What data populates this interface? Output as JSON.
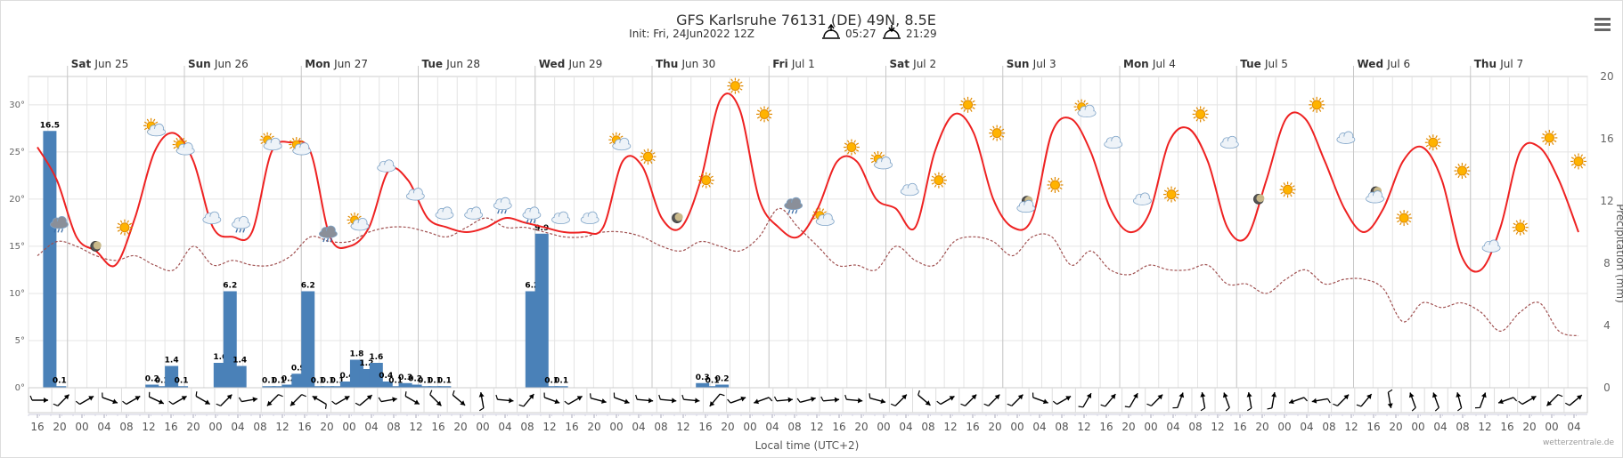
{
  "header": {
    "title": "GFS Karlsruhe 76131 (DE) 49N, 8.5E",
    "init": "Init: Fri, 24Jun2022 12Z",
    "sunrise": "05:27",
    "sunset": "21:29"
  },
  "menu_icon": "hamburger-menu-icon",
  "colors": {
    "temp": "#ee2222",
    "dew": "#a05050",
    "bar": "#4a81b8",
    "grid": "#e4e4e4"
  },
  "chart_data": {
    "type": "bar",
    "title": "GFS Karlsruhe 76131 (DE) 49N, 8.5E",
    "xlabel": "Local time (UTC+2)",
    "ylabel_left": "",
    "ylabel_right": "Precipitation (mm)",
    "temp_axis": {
      "min": 0,
      "max": 33,
      "ticks": [
        "0°",
        "5°",
        "10°",
        "15°",
        "20°",
        "25°",
        "30°"
      ],
      "tick_values": [
        0,
        5,
        10,
        15,
        20,
        25,
        30
      ]
    },
    "precip_axis": {
      "min": 0,
      "max": 20,
      "ticks": [
        "0",
        "4",
        "8",
        "12",
        "16",
        "20"
      ],
      "tick_values": [
        0,
        4,
        8,
        12,
        16,
        20
      ]
    },
    "start_hour_offset": 0,
    "step_hours": 4,
    "hour_labels": [
      "16",
      "20",
      "00",
      "04",
      "08",
      "12",
      "16",
      "20",
      "00",
      "04",
      "08",
      "12",
      "16",
      "20",
      "00",
      "04",
      "08",
      "12",
      "16",
      "20",
      "00",
      "04",
      "08",
      "12",
      "16",
      "20",
      "00",
      "04",
      "08",
      "12",
      "16",
      "20",
      "00",
      "04",
      "08",
      "12",
      "16",
      "20",
      "00",
      "04",
      "08",
      "12",
      "16",
      "20",
      "00",
      "04",
      "08",
      "12",
      "16",
      "20",
      "00",
      "04",
      "08",
      "12",
      "16",
      "20",
      "00",
      "04",
      "08",
      "12",
      "16",
      "20",
      "00",
      "04",
      "08",
      "12",
      "16",
      "20",
      "00",
      "04",
      "08",
      "12",
      "16",
      "20",
      "00",
      "04",
      "08",
      "12",
      "16",
      "20"
    ],
    "days": [
      {
        "dow": "Sat",
        "date": "Jun 25",
        "start_index": 2
      },
      {
        "dow": "Sun",
        "date": "Jun 26",
        "start_index": 8
      },
      {
        "dow": "Mon",
        "date": "Jun 27",
        "start_index": 14
      },
      {
        "dow": "Tue",
        "date": "Jun 28",
        "start_index": 20
      },
      {
        "dow": "Wed",
        "date": "Jun 29",
        "start_index": 26
      },
      {
        "dow": "Thu",
        "date": "Jun 30",
        "start_index": 32
      },
      {
        "dow": "Fri",
        "date": "Jul 1",
        "start_index": 38
      },
      {
        "dow": "Sat",
        "date": "Jul 2",
        "start_index": 44
      },
      {
        "dow": "Sun",
        "date": "Jul 3",
        "start_index": 50
      },
      {
        "dow": "Mon",
        "date": "Jul 4",
        "start_index": 56
      },
      {
        "dow": "Tue",
        "date": "Jul 5",
        "start_index": 62
      },
      {
        "dow": "Wed",
        "date": "Jul 6",
        "start_index": 68
      },
      {
        "dow": "Thu",
        "date": "Jul 7",
        "start_index": 74
      }
    ],
    "temperature": [
      25.5,
      22,
      16,
      14.5,
      13,
      18,
      25,
      27,
      24,
      17,
      16,
      16.5,
      25,
      26,
      25,
      16,
      15,
      17,
      23,
      22,
      18,
      17,
      16.5,
      17,
      18,
      17.5,
      17,
      16.5,
      16.5,
      17,
      24,
      23.5,
      18,
      17,
      22,
      30.5,
      29.5,
      20,
      17,
      16,
      19,
      24,
      24,
      20,
      19,
      17,
      25,
      29,
      27,
      20,
      17,
      18,
      27,
      28.5,
      25,
      19,
      16.5,
      18.5,
      26,
      27.5,
      24,
      17,
      16,
      22,
      28.5,
      28.5,
      24,
      19,
      16.5,
      19,
      24,
      25.5,
      22,
      14,
      12.5,
      17,
      25,
      25.5,
      22,
      16.5
    ],
    "dewpoint": [
      14,
      15.5,
      15,
      14,
      13.5,
      14,
      13,
      12.5,
      15,
      13,
      13.5,
      13,
      13,
      14,
      16,
      15.5,
      15.5,
      16.5,
      17,
      17,
      16.5,
      16,
      17,
      18,
      17,
      17,
      16.5,
      16,
      16,
      16.5,
      16.5,
      16,
      15,
      14.5,
      15.5,
      15,
      14.5,
      16,
      19,
      17,
      15,
      13,
      13,
      12.5,
      15,
      13.5,
      13,
      15.5,
      16,
      15.5,
      14,
      16,
      16,
      13,
      14.5,
      12.5,
      12,
      13,
      12.5,
      12.5,
      13,
      11,
      11,
      10,
      11.5,
      12.5,
      11,
      11.5,
      11.5,
      10.5,
      7,
      9,
      8.5,
      9,
      8,
      6,
      8,
      9,
      6,
      5.5
    ],
    "precip_bars": [
      {
        "index": 1.5,
        "value": 16.5,
        "label": "16.5"
      },
      {
        "index": 2.5,
        "value": 0.1,
        "label": "0.1"
      },
      {
        "index": 12,
        "value": 0.2,
        "label": "0.2"
      },
      {
        "index": 13,
        "value": 0.1,
        "label": "0.1"
      },
      {
        "index": 14,
        "value": 1.4,
        "label": "1.4"
      },
      {
        "index": 15,
        "value": 0.1,
        "label": "0.1"
      },
      {
        "index": 19,
        "value": 1.6,
        "label": "1.6"
      },
      {
        "index": 20,
        "value": 6.2,
        "label": "6.2"
      },
      {
        "index": 21,
        "value": 1.4,
        "label": "1.4"
      },
      {
        "index": 24,
        "value": 0.1,
        "label": "0.1"
      },
      {
        "index": 25,
        "value": 0.1,
        "label": "0.1"
      },
      {
        "index": 26,
        "value": 0.2,
        "label": "0.2"
      },
      {
        "index": 27,
        "value": 0.9,
        "label": "0.9"
      },
      {
        "index": 28,
        "value": 6.2,
        "label": "6.2"
      },
      {
        "index": 29,
        "value": 0.1,
        "label": "0.1"
      },
      {
        "index": 30,
        "value": 0.1,
        "label": "0.1"
      },
      {
        "index": 31,
        "value": 0.1,
        "label": "0.1"
      },
      {
        "index": 32,
        "value": 0.4,
        "label": "0.4"
      },
      {
        "index": 33,
        "value": 1.8,
        "label": "1.8"
      },
      {
        "index": 34,
        "value": 1.2,
        "label": "1.2"
      },
      {
        "index": 35,
        "value": 1.6,
        "label": "1.6"
      },
      {
        "index": 36,
        "value": 0.4,
        "label": "0.4"
      },
      {
        "index": 37,
        "value": 0.1,
        "label": "0.1"
      },
      {
        "index": 38,
        "value": 0.3,
        "label": "0.3"
      },
      {
        "index": 39,
        "value": 0.2,
        "label": "0.2"
      },
      {
        "index": 40,
        "value": 0.1,
        "label": "0.1"
      },
      {
        "index": 41,
        "value": 0.1,
        "label": "0.1"
      },
      {
        "index": 42,
        "value": 0.1,
        "label": "0.1"
      },
      {
        "index": 51,
        "value": 6.2,
        "label": "6.2"
      },
      {
        "index": 52,
        "value": 9.9,
        "label": "9.9"
      },
      {
        "index": 53,
        "value": 0.1,
        "label": "0.1"
      },
      {
        "index": 54,
        "value": 0.1,
        "label": "0.1"
      },
      {
        "index": 68.5,
        "value": 0.3,
        "label": "0.3"
      },
      {
        "index": 69.5,
        "value": 0.1,
        "label": "0.1"
      },
      {
        "index": 70.5,
        "value": 0.2,
        "label": "0.2"
      }
    ],
    "weather_icons": [
      {
        "index": 1.5,
        "temp": 17.5,
        "type": "rain"
      },
      {
        "index": 4,
        "temp": 15,
        "type": "moon"
      },
      {
        "index": 6,
        "temp": 17,
        "type": "sun"
      },
      {
        "index": 8,
        "temp": 27.5,
        "type": "sun-cloud"
      },
      {
        "index": 10,
        "temp": 25.5,
        "type": "sun-cloud"
      },
      {
        "index": 12,
        "temp": 18,
        "type": "cloud"
      },
      {
        "index": 14,
        "temp": 17.5,
        "type": "rain-light"
      },
      {
        "index": 16,
        "temp": 26,
        "type": "sun-cloud"
      },
      {
        "index": 18,
        "temp": 25.5,
        "type": "sun-cloud"
      },
      {
        "index": 20,
        "temp": 16.5,
        "type": "rain"
      },
      {
        "index": 22,
        "temp": 17.5,
        "type": "sun-cloud"
      },
      {
        "index": 24,
        "temp": 23.5,
        "type": "cloud"
      },
      {
        "index": 26,
        "temp": 20.5,
        "type": "cloud"
      },
      {
        "index": 28,
        "temp": 18.5,
        "type": "cloud"
      },
      {
        "index": 30,
        "temp": 18.5,
        "type": "cloud"
      },
      {
        "index": 32,
        "temp": 19.5,
        "type": "rain-light"
      },
      {
        "index": 34,
        "temp": 18.5,
        "type": "rain-light"
      },
      {
        "index": 36,
        "temp": 18,
        "type": "cloud"
      },
      {
        "index": 38,
        "temp": 18,
        "type": "cloud"
      },
      {
        "index": 40,
        "temp": 26,
        "type": "sun-cloud"
      },
      {
        "index": 42,
        "temp": 24.5,
        "type": "sun"
      },
      {
        "index": 44,
        "temp": 18,
        "type": "moon"
      },
      {
        "index": 46,
        "temp": 22,
        "type": "sun"
      },
      {
        "index": 48,
        "temp": 32,
        "type": "sun"
      },
      {
        "index": 50,
        "temp": 29,
        "type": "sun"
      },
      {
        "index": 52,
        "temp": 19.5,
        "type": "rain"
      },
      {
        "index": 54,
        "temp": 18,
        "type": "sun-cloud"
      },
      {
        "index": 56,
        "temp": 25.5,
        "type": "sun"
      },
      {
        "index": 58,
        "temp": 24,
        "type": "sun-cloud"
      },
      {
        "index": 60,
        "temp": 21,
        "type": "cloud"
      },
      {
        "index": 62,
        "temp": 22,
        "type": "sun"
      },
      {
        "index": 64,
        "temp": 30,
        "type": "sun"
      },
      {
        "index": 66,
        "temp": 27,
        "type": "sun"
      },
      {
        "index": 68,
        "temp": 19.5,
        "type": "moon-cloud"
      },
      {
        "index": 70,
        "temp": 21.5,
        "type": "sun"
      },
      {
        "index": 72,
        "temp": 29.5,
        "type": "sun-cloud"
      },
      {
        "index": 74,
        "temp": 26,
        "type": "cloud"
      },
      {
        "index": 76,
        "temp": 20,
        "type": "cloud"
      },
      {
        "index": 78,
        "temp": 20.5,
        "type": "sun"
      },
      {
        "index": 80,
        "temp": 29,
        "type": "sun"
      },
      {
        "index": 82,
        "temp": 26,
        "type": "cloud"
      },
      {
        "index": 84,
        "temp": 20,
        "type": "moon"
      },
      {
        "index": 86,
        "temp": 21,
        "type": "sun"
      },
      {
        "index": 88,
        "temp": 30,
        "type": "sun"
      },
      {
        "index": 90,
        "temp": 26.5,
        "type": "cloud"
      },
      {
        "index": 92,
        "temp": 20.5,
        "type": "moon-cloud"
      },
      {
        "index": 94,
        "temp": 18,
        "type": "sun"
      },
      {
        "index": 96,
        "temp": 26,
        "type": "sun"
      },
      {
        "index": 98,
        "temp": 23,
        "type": "sun"
      },
      {
        "index": 100,
        "temp": 15,
        "type": "cloud"
      },
      {
        "index": 102,
        "temp": 17,
        "type": "sun"
      },
      {
        "index": 104,
        "temp": 26.5,
        "type": "sun"
      },
      {
        "index": 106,
        "temp": 24,
        "type": "sun"
      }
    ],
    "wind_directions_deg": [
      90,
      45,
      60,
      110,
      60,
      115,
      60,
      120,
      45,
      80,
      225,
      225,
      300,
      60,
      50,
      80,
      120,
      135,
      130,
      350,
      95,
      40,
      110,
      60,
      105,
      110,
      95,
      95,
      95,
      220,
      70,
      250,
      85,
      75,
      85,
      95,
      105,
      45,
      130,
      60,
      45,
      45,
      45,
      110,
      60,
      30,
      40,
      30,
      45,
      20,
      350,
      340,
      350,
      10,
      250,
      260,
      45,
      40,
      170,
      340,
      340,
      345,
      20,
      250,
      60,
      225,
      50
    ],
    "credit": "wetterzentrale.de"
  }
}
